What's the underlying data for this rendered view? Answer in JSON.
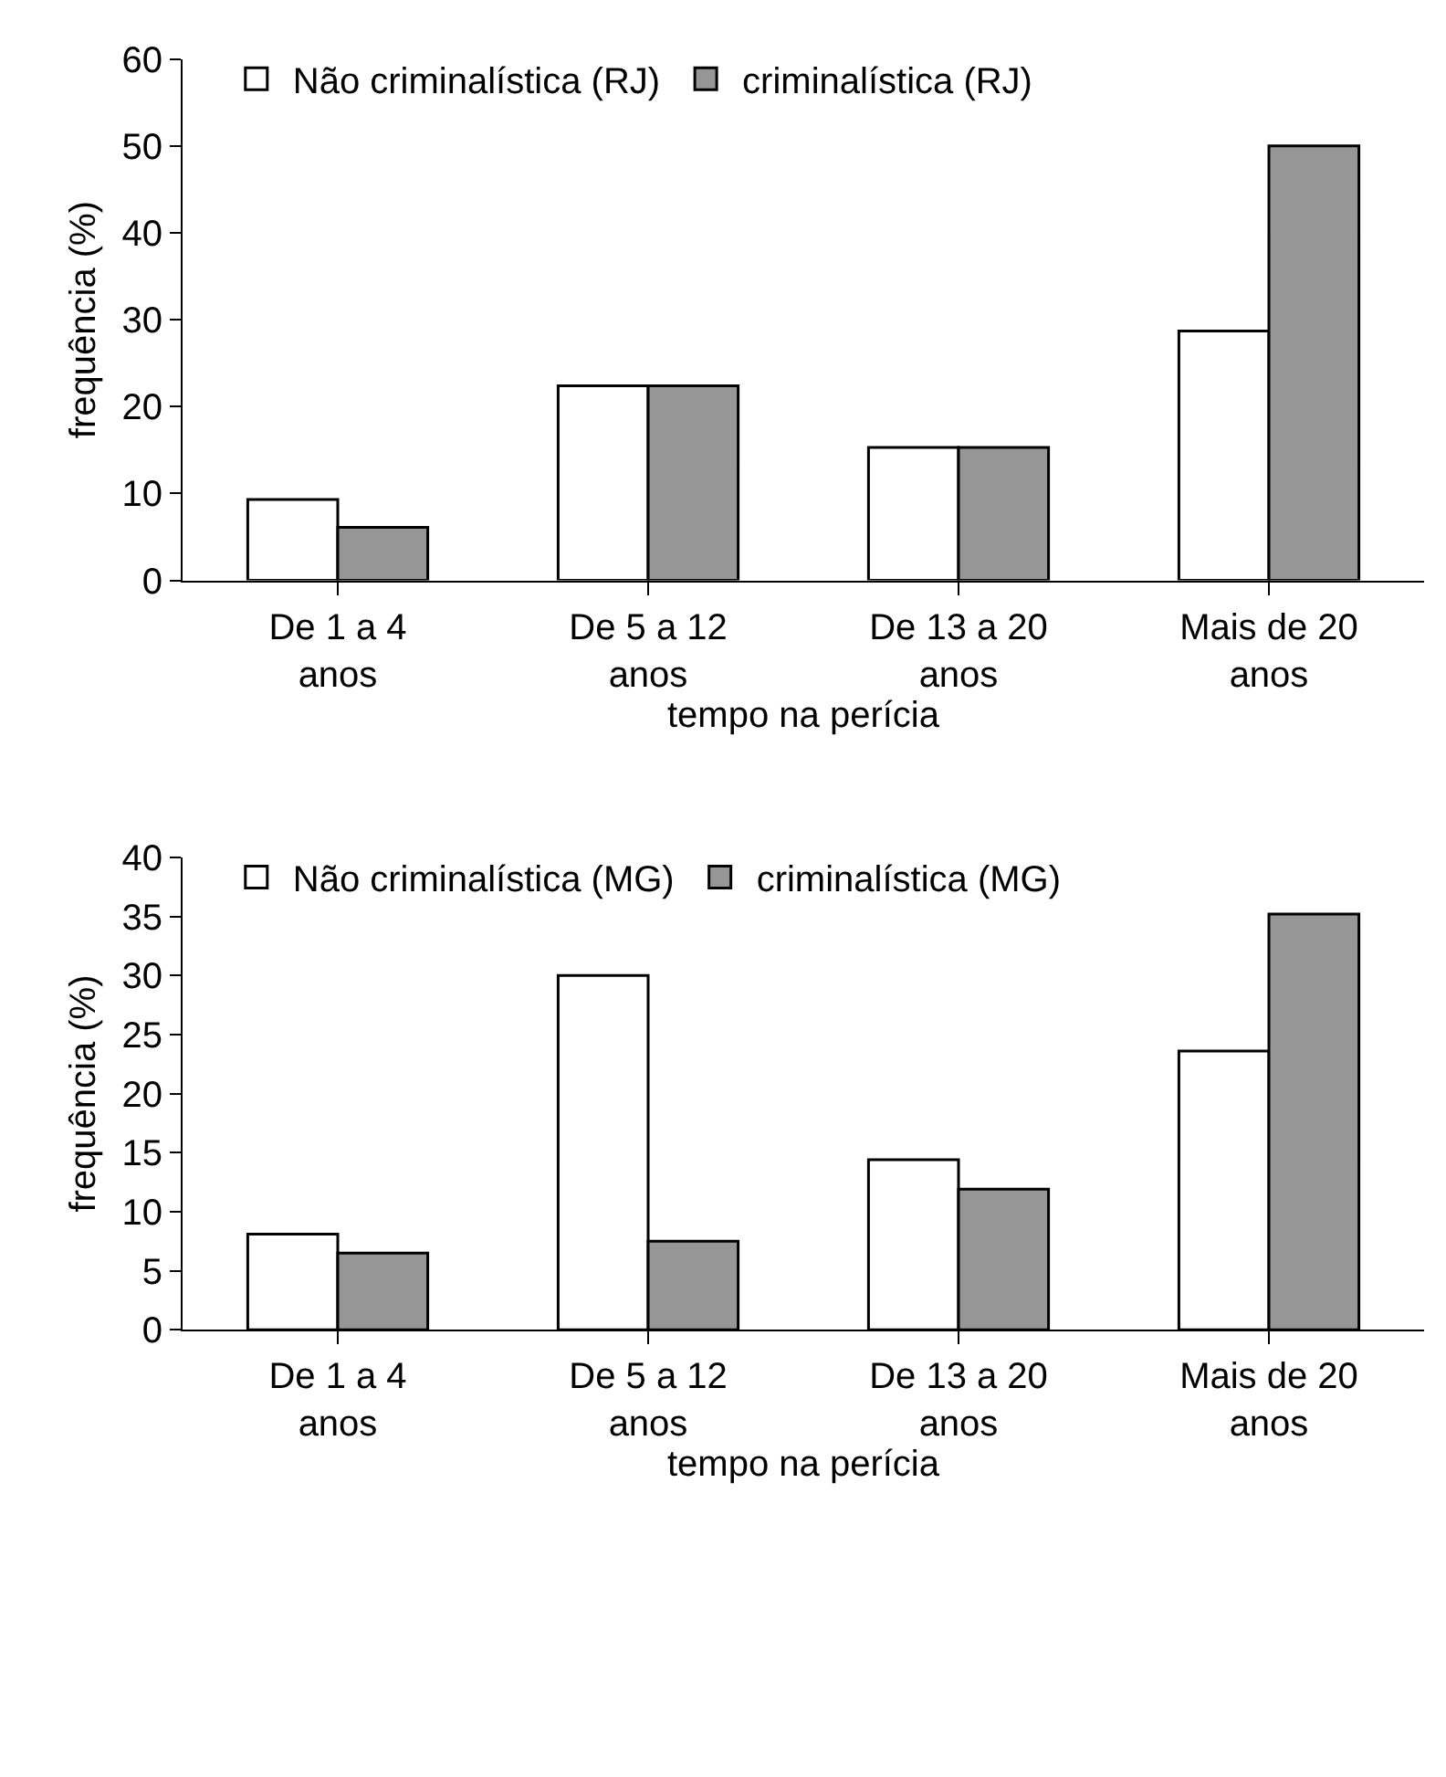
{
  "chart_data": [
    {
      "type": "bar",
      "xlabel": "tempo na perícia",
      "ylabel": "frequência (%)",
      "categories": [
        "De 1 a 4 anos",
        "De 5 a 12 anos",
        "De 13 a 20 anos",
        "Mais de 20 anos"
      ],
      "series": [
        {
          "name": "Não criminalística (RJ)",
          "color": "#ffffff",
          "values": [
            9.3,
            22.4,
            15.3,
            28.7
          ]
        },
        {
          "name": "criminalística (RJ)",
          "color": "#969696",
          "values": [
            6.1,
            22.4,
            15.3,
            50
          ]
        }
      ],
      "ylim": [
        0,
        60
      ],
      "yticks": [
        0,
        10,
        20,
        30,
        40,
        50,
        60
      ],
      "legend": "top"
    },
    {
      "type": "bar",
      "xlabel": "tempo na perícia",
      "ylabel": "frequência (%)",
      "categories": [
        "De 1 a 4 anos",
        "De 5 a 12 anos",
        "De 13 a 20 anos",
        "Mais de 20 anos"
      ],
      "series": [
        {
          "name": "Não criminalística (MG)",
          "color": "#ffffff",
          "values": [
            8.1,
            30,
            14.4,
            23.6
          ]
        },
        {
          "name": "criminalística (MG)",
          "color": "#969696",
          "values": [
            6.5,
            7.5,
            11.9,
            35.2
          ]
        }
      ],
      "ylim": [
        0,
        40
      ],
      "yticks": [
        0,
        5,
        10,
        15,
        20,
        25,
        30,
        35,
        40
      ],
      "legend": "top"
    }
  ]
}
